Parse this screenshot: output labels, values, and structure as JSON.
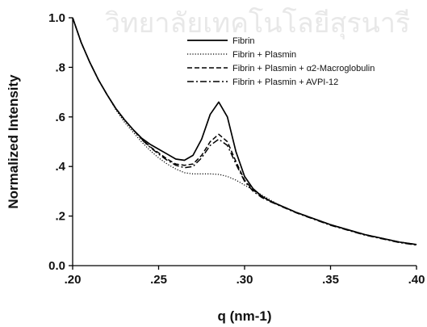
{
  "watermark": "วิทยาลัยเทคโนโลยีสุรนารี",
  "chart_data": {
    "type": "line",
    "title": "",
    "xlabel": "q (nm-1)",
    "ylabel": "Normalized Intensity",
    "xlim": [
      0.2,
      0.4
    ],
    "ylim": [
      0.0,
      1.0
    ],
    "x_ticks": [
      0.2,
      0.25,
      0.3,
      0.35,
      0.4
    ],
    "x_tick_labels": [
      ".20",
      ".25",
      ".30",
      ".35",
      ".40"
    ],
    "y_ticks": [
      0.0,
      0.2,
      0.4,
      0.6,
      0.8,
      1.0
    ],
    "y_tick_labels": [
      "0.0",
      ".2",
      ".4",
      ".6",
      ".8",
      "1.0"
    ],
    "grid": false,
    "legend_position": "top-right",
    "x": [
      0.2,
      0.205,
      0.21,
      0.215,
      0.22,
      0.225,
      0.23,
      0.235,
      0.24,
      0.245,
      0.25,
      0.255,
      0.26,
      0.265,
      0.27,
      0.275,
      0.28,
      0.285,
      0.29,
      0.295,
      0.3,
      0.305,
      0.31,
      0.315,
      0.32,
      0.33,
      0.34,
      0.35,
      0.36,
      0.37,
      0.38,
      0.39,
      0.4
    ],
    "series": [
      {
        "name": "Fibrin",
        "style": "solid",
        "values": [
          1.0,
          0.9,
          0.82,
          0.75,
          0.69,
          0.635,
          0.59,
          0.55,
          0.515,
          0.49,
          0.47,
          0.45,
          0.43,
          0.425,
          0.445,
          0.51,
          0.61,
          0.66,
          0.6,
          0.46,
          0.36,
          0.31,
          0.28,
          0.26,
          0.245,
          0.215,
          0.19,
          0.165,
          0.145,
          0.125,
          0.11,
          0.095,
          0.085
        ]
      },
      {
        "name": "Fibrin + Plasmin",
        "style": "dotted",
        "values": [
          1.0,
          0.9,
          0.82,
          0.75,
          0.69,
          0.63,
          0.58,
          0.54,
          0.5,
          0.465,
          0.435,
          0.41,
          0.39,
          0.375,
          0.37,
          0.37,
          0.37,
          0.368,
          0.36,
          0.345,
          0.325,
          0.305,
          0.285,
          0.265,
          0.245,
          0.215,
          0.19,
          0.165,
          0.145,
          0.125,
          0.11,
          0.095,
          0.085
        ]
      },
      {
        "name": "Fibrin + Plasmin + α2-Macroglobulin",
        "style": "dashed",
        "values": [
          1.0,
          0.9,
          0.82,
          0.75,
          0.69,
          0.635,
          0.59,
          0.55,
          0.512,
          0.48,
          0.455,
          0.43,
          0.41,
          0.405,
          0.41,
          0.445,
          0.5,
          0.53,
          0.5,
          0.42,
          0.345,
          0.305,
          0.28,
          0.26,
          0.245,
          0.215,
          0.19,
          0.165,
          0.145,
          0.125,
          0.11,
          0.095,
          0.085
        ]
      },
      {
        "name": "Fibrin + Plasmin + AVPI-12",
        "style": "dashdot",
        "values": [
          1.0,
          0.9,
          0.82,
          0.75,
          0.69,
          0.635,
          0.59,
          0.55,
          0.51,
          0.478,
          0.45,
          0.425,
          0.405,
          0.395,
          0.4,
          0.435,
          0.485,
          0.51,
          0.485,
          0.41,
          0.34,
          0.3,
          0.275,
          0.258,
          0.243,
          0.213,
          0.188,
          0.163,
          0.143,
          0.123,
          0.108,
          0.093,
          0.083
        ]
      }
    ]
  }
}
